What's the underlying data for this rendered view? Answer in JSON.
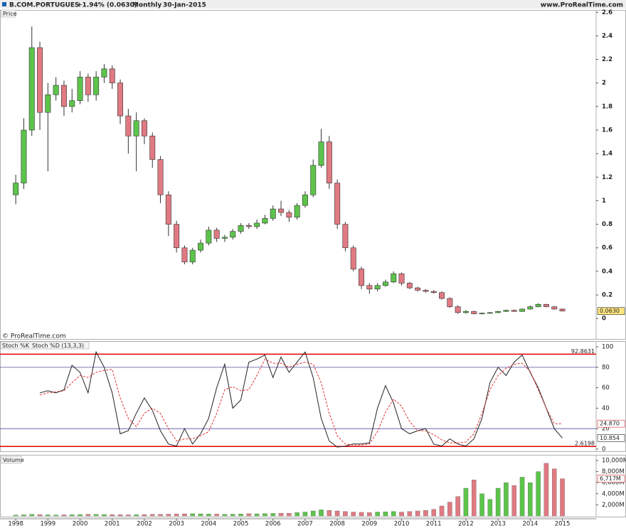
{
  "header": {
    "symbol": "B.COM.PORTUGUES",
    "change": "+1.94% (0.0630)",
    "period": "Monthly",
    "date": "30-Jan-2015",
    "site": "www.ProRealTime.com",
    "copyright": "© ProRealTime.com"
  },
  "chart_data": [
    {
      "type": "candlestick",
      "title": "Price",
      "x": [
        1998,
        1998.25,
        1998.5,
        1998.75,
        1999,
        1999.25,
        1999.5,
        1999.75,
        2000,
        2000.25,
        2000.5,
        2000.75,
        2001,
        2001.25,
        2001.5,
        2001.75,
        2002,
        2002.25,
        2002.5,
        2002.75,
        2003,
        2003.25,
        2003.5,
        2003.75,
        2004,
        2004.25,
        2004.5,
        2004.75,
        2005,
        2005.25,
        2005.5,
        2005.75,
        2006,
        2006.25,
        2006.5,
        2006.75,
        2007,
        2007.25,
        2007.5,
        2007.75,
        2008,
        2008.25,
        2008.5,
        2008.75,
        2009,
        2009.25,
        2009.5,
        2009.75,
        2010,
        2010.25,
        2010.5,
        2010.75,
        2011,
        2011.25,
        2011.5,
        2011.75,
        2012,
        2012.25,
        2012.5,
        2012.75,
        2013,
        2013.25,
        2013.5,
        2013.75,
        2014,
        2014.25,
        2014.5,
        2014.75,
        2015
      ],
      "open": [
        1.05,
        1.15,
        1.6,
        2.3,
        1.75,
        1.9,
        1.98,
        1.8,
        1.85,
        2.05,
        1.9,
        2.05,
        2.12,
        2.0,
        1.72,
        1.55,
        1.68,
        1.55,
        1.35,
        1.05,
        0.8,
        0.6,
        0.48,
        0.58,
        0.64,
        0.75,
        0.68,
        0.69,
        0.74,
        0.79,
        0.78,
        0.81,
        0.85,
        0.93,
        0.9,
        0.86,
        0.96,
        1.05,
        1.3,
        1.5,
        1.15,
        0.8,
        0.6,
        0.42,
        0.28,
        0.25,
        0.28,
        0.31,
        0.38,
        0.3,
        0.26,
        0.24,
        0.23,
        0.22,
        0.17,
        0.1,
        0.05,
        0.06,
        0.04,
        0.045,
        0.05,
        0.06,
        0.07,
        0.06,
        0.08,
        0.1,
        0.12,
        0.1,
        0.08
      ],
      "high": [
        1.22,
        1.7,
        2.48,
        2.35,
        2.0,
        2.05,
        2.02,
        1.95,
        2.1,
        2.08,
        2.1,
        2.16,
        2.15,
        2.03,
        1.78,
        1.75,
        1.7,
        1.58,
        1.38,
        1.08,
        0.83,
        0.62,
        0.6,
        0.67,
        0.78,
        0.77,
        0.71,
        0.76,
        0.81,
        0.81,
        0.84,
        0.88,
        0.96,
        1.0,
        0.92,
        0.98,
        1.08,
        1.35,
        1.61,
        1.55,
        1.18,
        0.82,
        0.62,
        0.44,
        0.3,
        0.3,
        0.33,
        0.4,
        0.39,
        0.31,
        0.27,
        0.25,
        0.24,
        0.23,
        0.18,
        0.11,
        0.07,
        0.065,
        0.05,
        0.055,
        0.065,
        0.075,
        0.075,
        0.085,
        0.11,
        0.13,
        0.125,
        0.105,
        0.085
      ],
      "low": [
        0.97,
        1.1,
        1.55,
        1.6,
        1.25,
        1.85,
        1.72,
        1.75,
        1.82,
        1.84,
        1.85,
        2.0,
        1.95,
        1.65,
        1.4,
        1.25,
        1.48,
        1.28,
        0.98,
        0.7,
        0.56,
        0.46,
        0.46,
        0.56,
        0.62,
        0.65,
        0.65,
        0.67,
        0.72,
        0.76,
        0.76,
        0.8,
        0.83,
        0.87,
        0.82,
        0.84,
        0.94,
        1.03,
        1.28,
        1.1,
        0.76,
        0.57,
        0.4,
        0.25,
        0.21,
        0.23,
        0.27,
        0.3,
        0.28,
        0.25,
        0.23,
        0.22,
        0.21,
        0.16,
        0.09,
        0.04,
        0.04,
        0.035,
        0.035,
        0.04,
        0.045,
        0.055,
        0.055,
        0.055,
        0.075,
        0.095,
        0.095,
        0.075,
        0.06
      ],
      "close": [
        1.15,
        1.6,
        2.3,
        1.75,
        1.9,
        1.98,
        1.8,
        1.85,
        2.05,
        1.9,
        2.05,
        2.12,
        2.0,
        1.72,
        1.55,
        1.68,
        1.55,
        1.35,
        1.05,
        0.8,
        0.6,
        0.48,
        0.58,
        0.64,
        0.75,
        0.68,
        0.69,
        0.74,
        0.79,
        0.78,
        0.81,
        0.85,
        0.93,
        0.9,
        0.86,
        0.96,
        1.05,
        1.3,
        1.5,
        1.15,
        0.8,
        0.6,
        0.42,
        0.28,
        0.25,
        0.28,
        0.31,
        0.38,
        0.3,
        0.26,
        0.24,
        0.23,
        0.22,
        0.17,
        0.1,
        0.05,
        0.06,
        0.04,
        0.045,
        0.05,
        0.06,
        0.07,
        0.06,
        0.08,
        0.1,
        0.12,
        0.1,
        0.08,
        0.063
      ],
      "last_value_label": "0.0630",
      "up_color": "#5cc44a",
      "down_color": "#e07a82",
      "xlim": [
        1997.51,
        2016.05
      ],
      "ylim": [
        -0.18,
        2.62
      ],
      "yticks": [
        0,
        0.2,
        0.4,
        0.6,
        0.8,
        1,
        1.2,
        1.4,
        1.6,
        1.8,
        2,
        2.2,
        2.4,
        2.6
      ]
    },
    {
      "type": "line",
      "x": [
        1998,
        1998.25,
        1998.5,
        1998.75,
        1999,
        1999.25,
        1999.5,
        1999.75,
        2000,
        2000.25,
        2000.5,
        2000.75,
        2001,
        2001.25,
        2001.5,
        2001.75,
        2002,
        2002.25,
        2002.5,
        2002.75,
        2003,
        2003.25,
        2003.5,
        2003.75,
        2004,
        2004.25,
        2004.5,
        2004.75,
        2005,
        2005.25,
        2005.5,
        2005.75,
        2006,
        2006.25,
        2006.5,
        2006.75,
        2007,
        2007.25,
        2007.5,
        2007.75,
        2008,
        2008.25,
        2008.5,
        2008.75,
        2009,
        2009.25,
        2009.5,
        2009.75,
        2010,
        2010.25,
        2010.5,
        2010.75,
        2011,
        2011.25,
        2011.5,
        2011.75,
        2012,
        2012.25,
        2012.5,
        2012.75,
        2013,
        2013.25,
        2013.5,
        2013.75,
        2014,
        2014.25,
        2014.5,
        2014.75,
        2015
      ],
      "series": [
        {
          "name": "Stoch %K",
          "color": "#222222",
          "dash": false,
          "values": [
            null,
            null,
            null,
            55,
            57,
            55,
            58,
            82,
            75,
            55,
            95,
            80,
            55,
            15,
            18,
            35,
            50,
            38,
            18,
            5,
            3,
            20,
            5,
            15,
            30,
            60,
            83,
            40,
            48,
            85,
            88,
            92,
            70,
            90,
            75,
            85,
            95,
            70,
            30,
            8,
            2,
            3,
            5,
            5,
            6,
            40,
            62,
            45,
            20,
            15,
            18,
            20,
            5,
            3,
            10,
            5,
            3,
            10,
            30,
            65,
            80,
            72,
            85,
            92,
            75,
            60,
            40,
            20,
            10.854
          ],
          "last_value_label": "10.854"
        },
        {
          "name": "Stoch %D (13,3,3)",
          "color": "#e03030",
          "dash": true,
          "values": [
            null,
            null,
            null,
            53,
            55,
            56,
            57,
            65,
            72,
            70,
            75,
            77,
            78,
            50,
            30,
            22,
            35,
            40,
            35,
            20,
            8,
            10,
            10,
            13,
            17,
            35,
            58,
            61,
            57,
            58,
            72,
            88,
            84,
            84,
            80,
            83,
            85,
            83,
            65,
            35,
            13,
            5,
            4,
            4,
            5,
            17,
            36,
            49,
            42,
            27,
            18,
            18,
            14,
            9,
            6,
            6,
            7,
            15,
            35,
            58,
            72,
            79,
            83,
            84,
            76,
            58,
            40,
            24.87,
            24.87
          ],
          "last_value_label": "24.870"
        }
      ],
      "hlines": [
        {
          "value": 80,
          "color": "#5050a0",
          "show_value": false
        },
        {
          "value": 20,
          "color": "#5050a0",
          "show_value": false
        },
        {
          "value": 92.8631,
          "color": "#e00000",
          "show_value": true
        },
        {
          "value": 2.6198,
          "color": "#e00000",
          "show_value": true
        }
      ],
      "xlim": [
        1997.51,
        2016.05
      ],
      "ylim": [
        -2.8,
        105.6
      ],
      "yticks": [
        0,
        20,
        40,
        60,
        80,
        100
      ]
    },
    {
      "type": "bar",
      "title": "Volume",
      "x": [
        1998,
        1998.25,
        1998.5,
        1998.75,
        1999,
        1999.25,
        1999.5,
        1999.75,
        2000,
        2000.25,
        2000.5,
        2000.75,
        2001,
        2001.25,
        2001.5,
        2001.75,
        2002,
        2002.25,
        2002.5,
        2002.75,
        2003,
        2003.25,
        2003.5,
        2003.75,
        2004,
        2004.25,
        2004.5,
        2004.75,
        2005,
        2005.25,
        2005.5,
        2005.75,
        2006,
        2006.25,
        2006.5,
        2006.75,
        2007,
        2007.25,
        2007.5,
        2007.75,
        2008,
        2008.25,
        2008.5,
        2008.75,
        2009,
        2009.25,
        2009.5,
        2009.75,
        2010,
        2010.25,
        2010.5,
        2010.75,
        2011,
        2011.25,
        2011.5,
        2011.75,
        2012,
        2012.25,
        2012.5,
        2012.75,
        2013,
        2013.25,
        2013.5,
        2013.75,
        2014,
        2014.25,
        2014.5,
        2014.75,
        2015
      ],
      "values": [
        150,
        200,
        300,
        250,
        200,
        180,
        200,
        220,
        250,
        300,
        280,
        260,
        250,
        220,
        200,
        230,
        250,
        280,
        300,
        320,
        350,
        380,
        400,
        380,
        350,
        330,
        300,
        320,
        350,
        400,
        380,
        420,
        450,
        500,
        480,
        600,
        700,
        900,
        1100,
        1000,
        900,
        800,
        700,
        650,
        600,
        700,
        750,
        800,
        700,
        800,
        900,
        1000,
        1200,
        1800,
        2500,
        3500,
        5000,
        6500,
        4000,
        3000,
        5000,
        6000,
        5500,
        7000,
        6000,
        8000,
        9500,
        8500,
        6717
      ],
      "last_value_label": "6,717M",
      "xlim": [
        1997.51,
        2016.05
      ],
      "ylim": [
        -256,
        11026
      ],
      "yticks": [
        {
          "value": 2000,
          "label": "2,000M"
        },
        {
          "value": 4000,
          "label": "4,000M"
        },
        {
          "value": 6000,
          "label": "6,000M"
        },
        {
          "value": 8000,
          "label": "8,000M"
        },
        {
          "value": 10000,
          "label": "10,000M"
        }
      ],
      "xticks": [
        1998,
        1999,
        2000,
        2001,
        2002,
        2003,
        2004,
        2005,
        2006,
        2007,
        2008,
        2009,
        2010,
        2011,
        2012,
        2013,
        2014,
        2015
      ]
    }
  ]
}
